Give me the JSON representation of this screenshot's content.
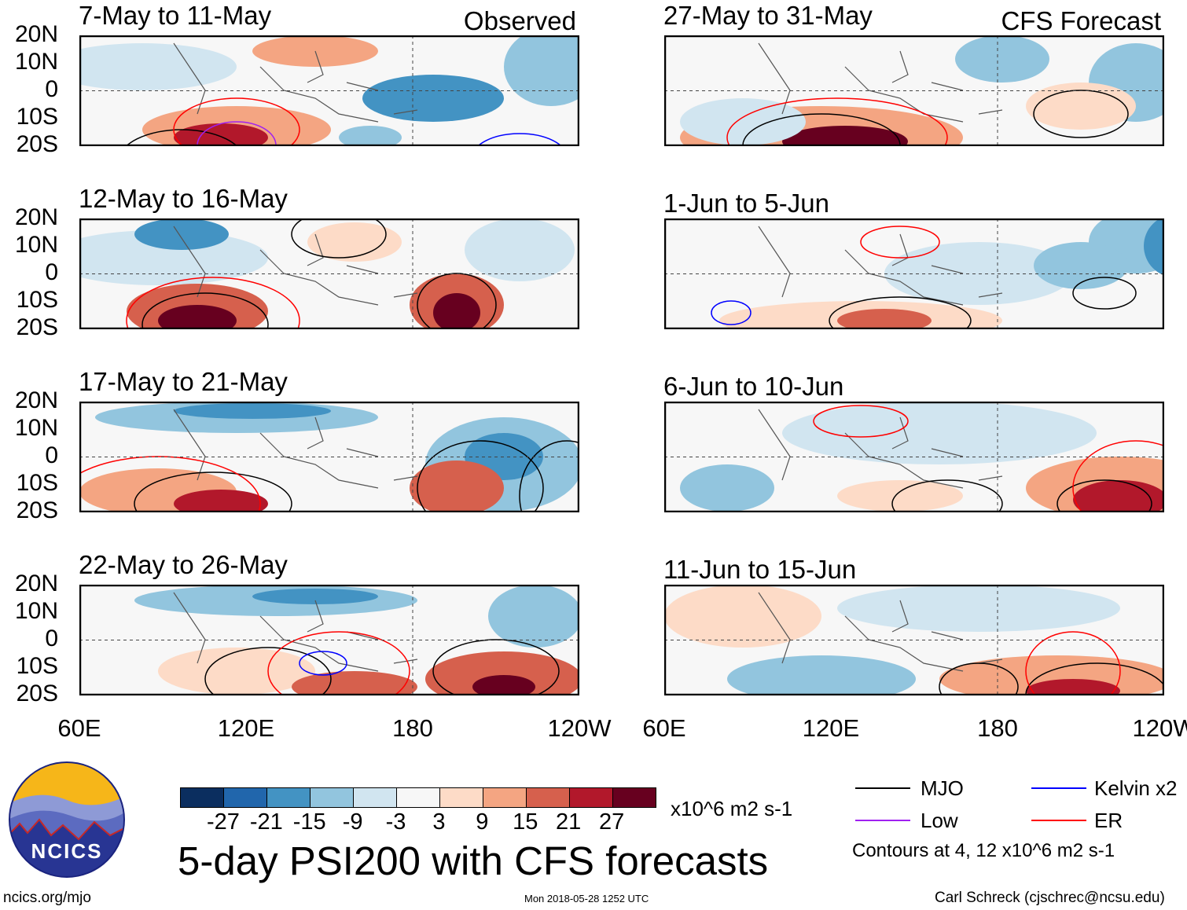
{
  "chart_data": {
    "type": "heatmap",
    "title": "5-day PSI200 with CFS forecasts",
    "variable": "PSI200",
    "units": "x10^6 m2 s-1",
    "x_ticks": [
      "60E",
      "120E",
      "180",
      "120W"
    ],
    "y_ticks": [
      "20N",
      "10N",
      "0",
      "10S",
      "20S"
    ],
    "xlim": [
      "60E",
      "120W"
    ],
    "ylim": [
      "20S",
      "20N"
    ],
    "colorbar": {
      "levels": [
        "-27",
        "-21",
        "-15",
        "-9",
        "-3",
        "3",
        "9",
        "15",
        "21",
        "27"
      ],
      "colors": [
        "#0b2e5f",
        "#2166ac",
        "#4393c3",
        "#92c5de",
        "#d1e5f0",
        "#f7f7f7",
        "#fddbc7",
        "#f4a582",
        "#d6604d",
        "#b2182b",
        "#67001f"
      ]
    },
    "legend": [
      {
        "label": "MJO",
        "color": "#000000"
      },
      {
        "label": "Kelvin x2",
        "color": "#0000ff"
      },
      {
        "label": "Low",
        "color": "#a020f0"
      },
      {
        "label": "ER",
        "color": "#ff0000"
      }
    ],
    "contour_note": "Contours at 4, 12 x10^6 m2 s-1",
    "panels": [
      {
        "title": "7-May to 11-May",
        "label": "Observed"
      },
      {
        "title": "12-May to 16-May"
      },
      {
        "title": "17-May to 21-May"
      },
      {
        "title": "22-May to 26-May"
      },
      {
        "title": "27-May to 31-May",
        "label": "CFS Forecast"
      },
      {
        "title": "1-Jun to 5-Jun"
      },
      {
        "title": "6-Jun to 10-Jun"
      },
      {
        "title": "11-Jun to 15-Jun"
      }
    ]
  },
  "footer": {
    "logo_text": "NCICS",
    "url": "ncics.org/mjo",
    "timestamp": "Mon 2018-05-28 1252 UTC",
    "author": "Carl Schreck (cjschrec@ncsu.edu)"
  }
}
